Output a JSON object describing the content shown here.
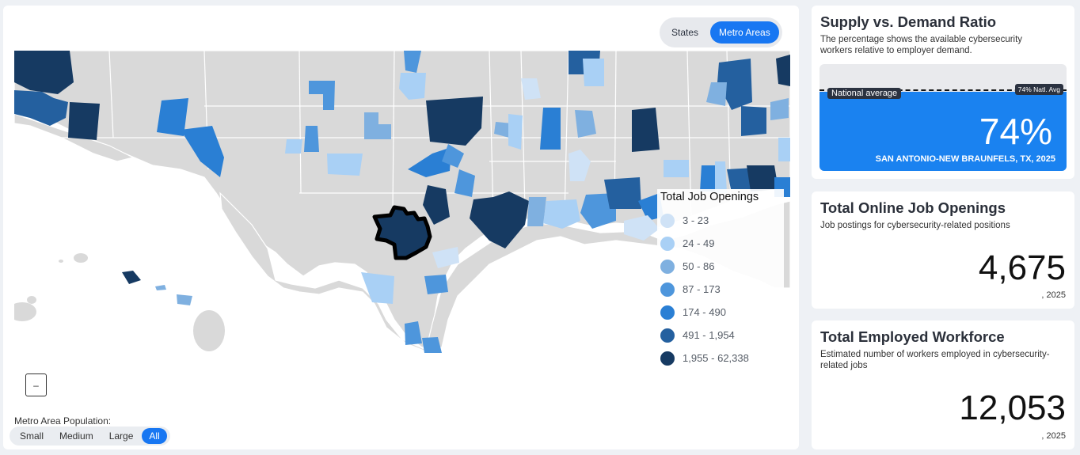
{
  "view_toggle": {
    "states_label": "States",
    "metro_label": "Metro Areas",
    "active": "metro"
  },
  "legend": {
    "title": "Total Job Openings",
    "items": [
      {
        "label": "3 - 23",
        "color": "#cfe2f6"
      },
      {
        "label": "24 - 49",
        "color": "#a9d0f5"
      },
      {
        "label": "50 - 86",
        "color": "#7fb0e0"
      },
      {
        "label": "87 - 173",
        "color": "#4e96dc"
      },
      {
        "label": "174 - 490",
        "color": "#2a7fd4"
      },
      {
        "label": "491 - 1,954",
        "color": "#24609f"
      },
      {
        "label": "1,955 - 62,338",
        "color": "#163a62"
      }
    ]
  },
  "zoom": {
    "minus_label": "–"
  },
  "population_filter": {
    "label": "Metro Area Population:",
    "options": [
      "Small",
      "Medium",
      "Large",
      "All"
    ],
    "active": "All"
  },
  "supply_card": {
    "title": "Supply vs. Demand Ratio",
    "description": "The percentage shows the available cybersecurity workers relative to employer demand.",
    "national_avg_label": "National average",
    "national_avg_badge": "74% Natl. Avg",
    "value": "74%",
    "value_fraction": 0.74,
    "metro_label": "SAN ANTONIO-NEW BRAUNFELS, TX, 2025",
    "fill_color": "#1a82f0"
  },
  "openings_card": {
    "title": "Total Online Job Openings",
    "description": "Job postings for cybersecurity-related positions",
    "value": "4,675",
    "year": ", 2025"
  },
  "workforce_card": {
    "title": "Total Employed Workforce",
    "description": "Estimated number of workers employed in cybersecurity-related jobs",
    "value": "12,053",
    "year": ", 2025"
  },
  "colors": {
    "accent": "#1877f2",
    "land": "#d9d9d9",
    "selected_outline": "#000000"
  }
}
